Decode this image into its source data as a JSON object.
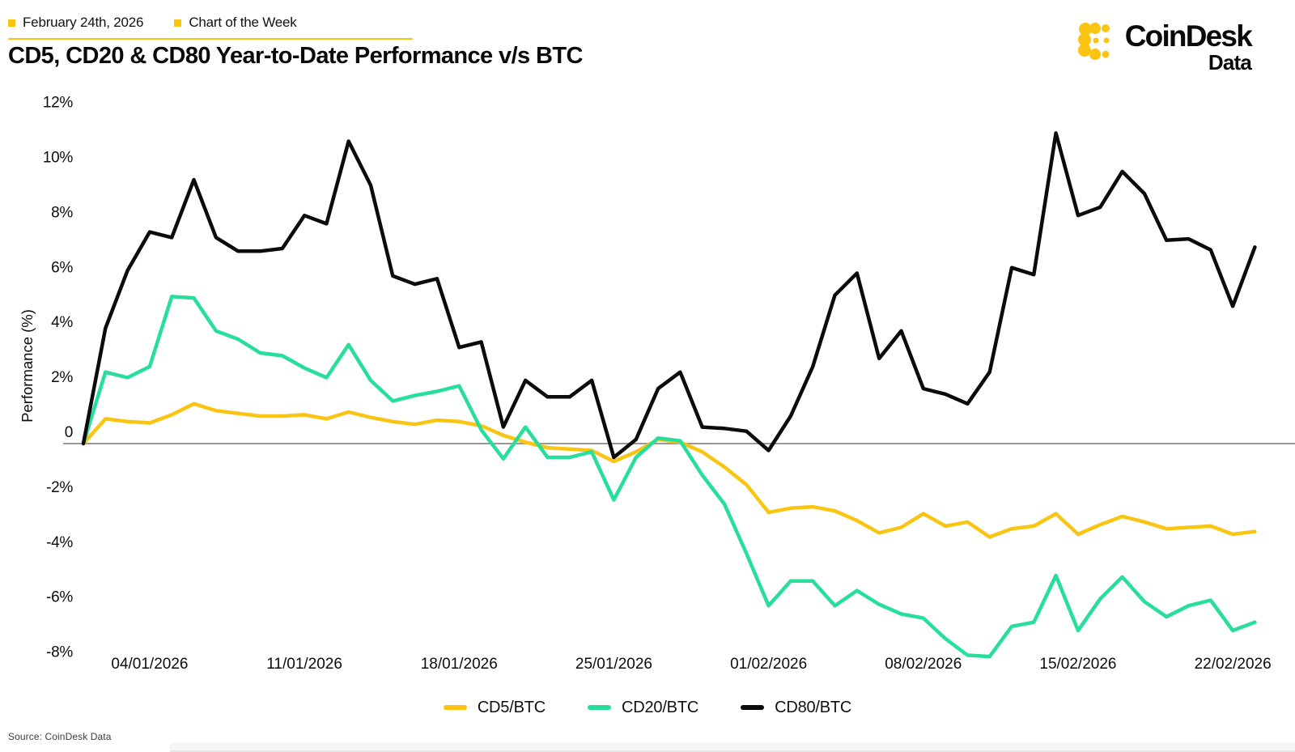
{
  "theme": {
    "accent": "#F9C412",
    "green": "#27DE9B",
    "black": "#0B0B0B",
    "zero_line": "#999999"
  },
  "header": {
    "date": "February 24th, 2026",
    "tag": "Chart of the Week",
    "title": "CD5, CD20 & CD80 Year-to-Date Performance v/s BTC"
  },
  "logo": {
    "brand": "CoinDesk",
    "product": "Data"
  },
  "footer": {
    "source": "Source: CoinDesk Data"
  },
  "chart_data": {
    "type": "line",
    "title": "CD5, CD20 & CD80 Year-to-Date Performance v/s BTC",
    "xlabel": "",
    "ylabel": "Performance (%)",
    "ylim": [
      -9,
      12.5
    ],
    "grid": false,
    "zero_line": true,
    "legend_position": "bottom",
    "y_tick_values": [
      12,
      10,
      8,
      6,
      4,
      2,
      0,
      -2,
      -4,
      -6,
      -8
    ],
    "y_tick_labels": [
      "12%",
      "10%",
      "8%",
      "6%",
      "4%",
      "2%",
      "0",
      "-2%",
      "-4%",
      "-6%",
      "-8%"
    ],
    "x_tick_days": [
      3,
      10,
      17,
      24,
      31,
      38,
      45,
      52
    ],
    "x_tick_labels": [
      "04/01/2026",
      "11/01/2026",
      "18/01/2026",
      "25/01/2026",
      "01/02/2026",
      "08/02/2026",
      "15/02/2026",
      "22/02/2026"
    ],
    "x": [
      "01/01/2026",
      "02/01/2026",
      "03/01/2026",
      "04/01/2026",
      "05/01/2026",
      "06/01/2026",
      "07/01/2026",
      "08/01/2026",
      "09/01/2026",
      "10/01/2026",
      "11/01/2026",
      "12/01/2026",
      "13/01/2026",
      "14/01/2026",
      "15/01/2026",
      "16/01/2026",
      "17/01/2026",
      "18/01/2026",
      "19/01/2026",
      "20/01/2026",
      "21/01/2026",
      "22/01/2026",
      "23/01/2026",
      "24/01/2026",
      "25/01/2026",
      "26/01/2026",
      "27/01/2026",
      "28/01/2026",
      "29/01/2026",
      "30/01/2026",
      "31/01/2026",
      "01/02/2026",
      "02/02/2026",
      "03/02/2026",
      "04/02/2026",
      "05/02/2026",
      "06/02/2026",
      "07/02/2026",
      "08/02/2026",
      "09/02/2026",
      "10/02/2026",
      "11/02/2026",
      "12/02/2026",
      "13/02/2026",
      "14/02/2026",
      "15/02/2026",
      "16/02/2026",
      "17/02/2026",
      "18/02/2026",
      "19/02/2026",
      "20/02/2026",
      "21/02/2026",
      "22/02/2026",
      "23/02/2026"
    ],
    "series": [
      {
        "name": "CD5/BTC",
        "color": "#F9C412",
        "values": [
          0,
          0.9,
          0.8,
          0.75,
          1.05,
          1.45,
          1.2,
          1.1,
          1.0,
          1.0,
          1.05,
          0.9,
          1.15,
          0.95,
          0.8,
          0.7,
          0.85,
          0.8,
          0.65,
          0.3,
          0.05,
          -0.15,
          -0.2,
          -0.25,
          -0.65,
          -0.3,
          0.15,
          0.05,
          -0.3,
          -0.85,
          -1.5,
          -2.5,
          -2.35,
          -2.3,
          -2.45,
          -2.8,
          -3.25,
          -3.05,
          -2.55,
          -3.0,
          -2.85,
          -3.4,
          -3.1,
          -3.0,
          -2.55,
          -3.3,
          -2.95,
          -2.65,
          -2.85,
          -3.1,
          -3.05,
          -3.0,
          -3.3,
          -3.2
        ]
      },
      {
        "name": "CD20/BTC",
        "color": "#27DE9B",
        "values": [
          0,
          2.6,
          2.4,
          2.8,
          5.35,
          5.3,
          4.1,
          3.8,
          3.3,
          3.2,
          2.75,
          2.4,
          3.6,
          2.3,
          1.55,
          1.75,
          1.9,
          2.1,
          0.5,
          -0.55,
          0.6,
          -0.5,
          -0.5,
          -0.3,
          -2.05,
          -0.5,
          0.2,
          0.1,
          -1.15,
          -2.2,
          -4.0,
          -5.9,
          -5.0,
          -5.0,
          -5.9,
          -5.35,
          -5.85,
          -6.2,
          -6.35,
          -7.1,
          -7.7,
          -7.75,
          -6.65,
          -6.5,
          -4.8,
          -6.8,
          -5.65,
          -4.85,
          -5.75,
          -6.3,
          -5.9,
          -5.7,
          -6.8,
          -6.5
        ]
      },
      {
        "name": "CD80/BTC",
        "color": "#0B0B0B",
        "values": [
          0,
          4.2,
          6.3,
          7.7,
          7.5,
          9.6,
          7.5,
          7.0,
          7.0,
          7.1,
          8.3,
          8.0,
          11.0,
          9.4,
          6.1,
          5.8,
          6.0,
          3.5,
          3.7,
          0.6,
          2.3,
          1.7,
          1.7,
          2.3,
          -0.5,
          0.15,
          2.0,
          2.6,
          0.6,
          0.55,
          0.45,
          -0.25,
          1.0,
          2.8,
          5.4,
          6.2,
          3.1,
          4.1,
          2.0,
          1.8,
          1.45,
          2.6,
          6.4,
          6.15,
          11.3,
          8.3,
          8.6,
          9.9,
          9.1,
          7.4,
          7.45,
          7.05,
          5.0,
          7.15
        ]
      }
    ]
  }
}
